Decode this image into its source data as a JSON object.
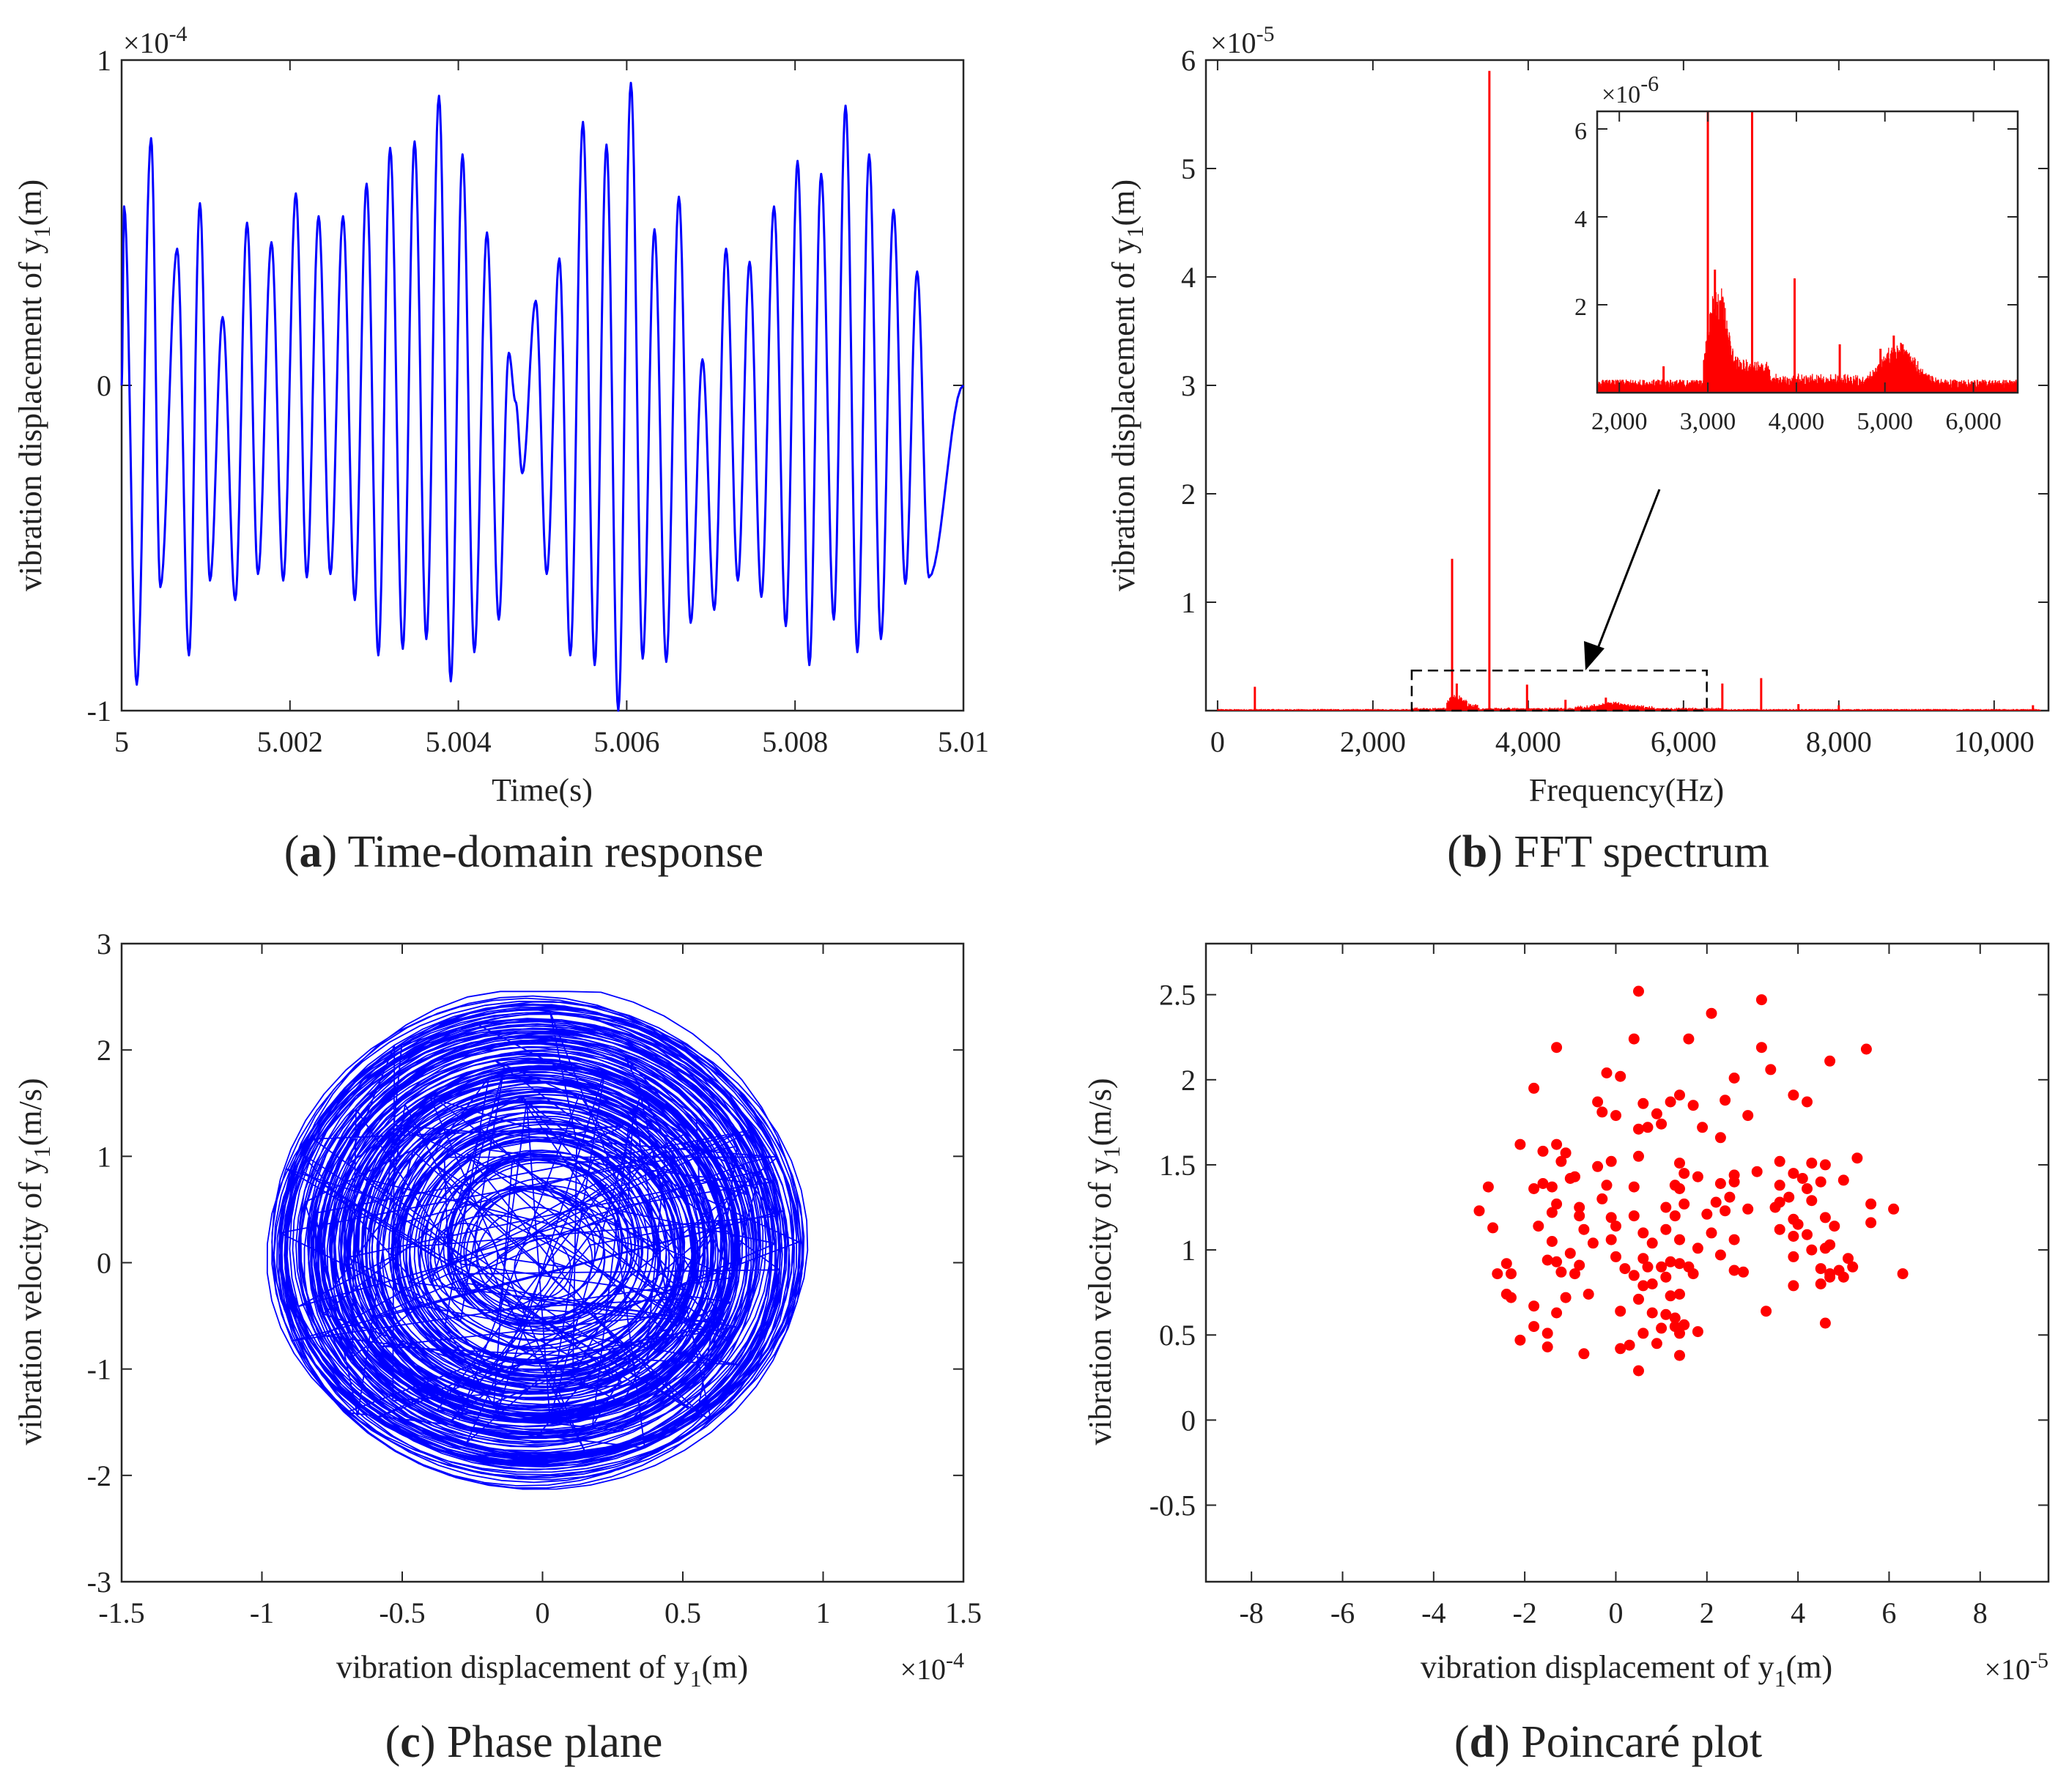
{
  "chart_data": [
    {
      "id": "a",
      "type": "line",
      "caption_letter": "a",
      "caption_text": "Time-domain response",
      "title": "",
      "xlabel": "Time(s)",
      "ylabel": "vibration displacement of y",
      "ylabel_sub": "1",
      "ylabel_unit": "(m)",
      "exponent": "×10",
      "exponent_power": "-4",
      "xlim": [
        5.0,
        5.01
      ],
      "ylim": [
        -1,
        1
      ],
      "xticks": [
        5.0,
        5.002,
        5.004,
        5.006,
        5.008,
        5.01
      ],
      "xtick_labels": [
        "5",
        "5.002",
        "5.004",
        "5.006",
        "5.008",
        "5.01"
      ],
      "yticks": [
        -1,
        0,
        1
      ],
      "ytick_labels": [
        "-1",
        "0",
        "1"
      ],
      "color": "#0000ff",
      "peaks": [
        {
          "t": 5.00003,
          "y": 0.55
        },
        {
          "t": 5.00018,
          "y": -0.92
        },
        {
          "t": 5.00035,
          "y": 0.76
        },
        {
          "t": 5.00046,
          "y": -0.62
        },
        {
          "t": 5.00066,
          "y": 0.42
        },
        {
          "t": 5.0008,
          "y": -0.83
        },
        {
          "t": 5.00093,
          "y": 0.56
        },
        {
          "t": 5.00105,
          "y": -0.6
        },
        {
          "t": 5.0012,
          "y": 0.21
        },
        {
          "t": 5.00135,
          "y": -0.66
        },
        {
          "t": 5.00149,
          "y": 0.5
        },
        {
          "t": 5.00162,
          "y": -0.58
        },
        {
          "t": 5.00178,
          "y": 0.44
        },
        {
          "t": 5.00192,
          "y": -0.6
        },
        {
          "t": 5.00207,
          "y": 0.59
        },
        {
          "t": 5.0022,
          "y": -0.59
        },
        {
          "t": 5.00234,
          "y": 0.52
        },
        {
          "t": 5.00248,
          "y": -0.58
        },
        {
          "t": 5.00263,
          "y": 0.52
        },
        {
          "t": 5.00277,
          "y": -0.66
        },
        {
          "t": 5.00291,
          "y": 0.62
        },
        {
          "t": 5.00305,
          "y": -0.83
        },
        {
          "t": 5.00319,
          "y": 0.73
        },
        {
          "t": 5.00334,
          "y": -0.81
        },
        {
          "t": 5.00348,
          "y": 0.75
        },
        {
          "t": 5.00362,
          "y": -0.78
        },
        {
          "t": 5.00377,
          "y": 0.89
        },
        {
          "t": 5.00391,
          "y": -0.91
        },
        {
          "t": 5.00405,
          "y": 0.71
        },
        {
          "t": 5.00419,
          "y": -0.82
        },
        {
          "t": 5.00434,
          "y": 0.47
        },
        {
          "t": 5.00448,
          "y": -0.72
        },
        {
          "t": 5.0046,
          "y": 0.1
        },
        {
          "t": 5.00468,
          "y": -0.05
        },
        {
          "t": 5.00476,
          "y": -0.27
        },
        {
          "t": 5.00492,
          "y": 0.26
        },
        {
          "t": 5.00505,
          "y": -0.58
        },
        {
          "t": 5.0052,
          "y": 0.39
        },
        {
          "t": 5.00533,
          "y": -0.83
        },
        {
          "t": 5.00548,
          "y": 0.81
        },
        {
          "t": 5.00562,
          "y": -0.86
        },
        {
          "t": 5.00576,
          "y": 0.74
        },
        {
          "t": 5.0059,
          "y": -1.0
        },
        {
          "t": 5.00605,
          "y": 0.93
        },
        {
          "t": 5.00619,
          "y": -0.84
        },
        {
          "t": 5.00633,
          "y": 0.48
        },
        {
          "t": 5.00647,
          "y": -0.85
        },
        {
          "t": 5.00662,
          "y": 0.58
        },
        {
          "t": 5.00676,
          "y": -0.73
        },
        {
          "t": 5.0069,
          "y": 0.08
        },
        {
          "t": 5.00704,
          "y": -0.69
        },
        {
          "t": 5.00718,
          "y": 0.42
        },
        {
          "t": 5.00732,
          "y": -0.6
        },
        {
          "t": 5.00746,
          "y": 0.38
        },
        {
          "t": 5.0076,
          "y": -0.65
        },
        {
          "t": 5.00775,
          "y": 0.55
        },
        {
          "t": 5.00789,
          "y": -0.74
        },
        {
          "t": 5.00803,
          "y": 0.69
        },
        {
          "t": 5.00817,
          "y": -0.86
        },
        {
          "t": 5.00831,
          "y": 0.65
        },
        {
          "t": 5.00846,
          "y": -0.72
        },
        {
          "t": 5.0086,
          "y": 0.86
        },
        {
          "t": 5.00874,
          "y": -0.82
        },
        {
          "t": 5.00888,
          "y": 0.71
        },
        {
          "t": 5.00902,
          "y": -0.78
        },
        {
          "t": 5.00917,
          "y": 0.54
        },
        {
          "t": 5.00931,
          "y": -0.61
        },
        {
          "t": 5.00945,
          "y": 0.35
        },
        {
          "t": 5.00959,
          "y": -0.59
        },
        {
          "t": 5.01,
          "y": 0.0
        }
      ]
    },
    {
      "id": "b",
      "type": "bar",
      "caption_letter": "b",
      "caption_text": "FFT spectrum",
      "title": "",
      "xlabel": "Frequency(Hz)",
      "ylabel": "vibration displacement of y",
      "ylabel_sub": "1",
      "ylabel_unit": "(m)",
      "exponent": "×10",
      "exponent_power": "-5",
      "xlim": [
        -150,
        10700
      ],
      "ylim": [
        0,
        6
      ],
      "xticks": [
        0,
        2000,
        4000,
        6000,
        8000,
        10000
      ],
      "xtick_labels": [
        "0",
        "2,000",
        "4,000",
        "6,000",
        "8,000",
        "10,000"
      ],
      "yticks": [
        1,
        2,
        3,
        4,
        5,
        6
      ],
      "ytick_labels": [
        "1",
        "2",
        "3",
        "4",
        "5",
        "6"
      ],
      "color": "#ff0000",
      "peaks": [
        {
          "f": 480,
          "a": 0.22
        },
        {
          "f": 3020,
          "a": 1.4
        },
        {
          "f": 3080,
          "a": 0.25
        },
        {
          "f": 3500,
          "a": 5.9
        },
        {
          "f": 3985,
          "a": 0.24
        },
        {
          "f": 4480,
          "a": 0.1
        },
        {
          "f": 5000,
          "a": 0.12
        },
        {
          "f": 6500,
          "a": 0.25
        },
        {
          "f": 7000,
          "a": 0.3
        },
        {
          "f": 7480,
          "a": 0.06
        },
        {
          "f": 8000,
          "a": 0.05
        },
        {
          "f": 10500,
          "a": 0.05
        }
      ],
      "zoom_box": {
        "f_range": [
          2500,
          6300
        ],
        "a_range": [
          0,
          0.37
        ]
      },
      "inset": {
        "exponent": "×10",
        "exponent_power": "-6",
        "xlim": [
          1750,
          6500
        ],
        "ylim": [
          0,
          6.4
        ],
        "xticks": [
          2000,
          3000,
          4000,
          5000,
          6000
        ],
        "xtick_labels": [
          "2,000",
          "3,000",
          "4,000",
          "5,000",
          "6,000"
        ],
        "yticks": [
          2,
          4,
          6
        ],
        "ytick_labels": [
          "2",
          "4",
          "6"
        ],
        "peaks": [
          {
            "f": 2500,
            "a": 0.6
          },
          {
            "f": 3000,
            "a": 6.4
          },
          {
            "f": 3080,
            "a": 2.8
          },
          {
            "f": 3140,
            "a": 2.1
          },
          {
            "f": 3500,
            "a": 6.4
          },
          {
            "f": 3980,
            "a": 2.6
          },
          {
            "f": 4490,
            "a": 1.1
          },
          {
            "f": 4950,
            "a": 1.0
          },
          {
            "f": 5100,
            "a": 1.3
          },
          {
            "f": 5200,
            "a": 1.1
          }
        ]
      }
    },
    {
      "id": "c",
      "type": "line",
      "caption_letter": "c",
      "caption_text": "Phase plane",
      "title": "",
      "xlabel": "vibration displacement of y",
      "xlabel_sub": "1",
      "xlabel_unit": "(m)",
      "ylabel": "vibration velocity of y",
      "ylabel_sub": "1",
      "ylabel_unit": "(m/s)",
      "exponent": "×10",
      "exponent_power": "-4",
      "xlim": [
        -1.5,
        1.5
      ],
      "ylim": [
        -3,
        3
      ],
      "xticks": [
        -1.5,
        -1,
        -0.5,
        0,
        0.5,
        1,
        1.5
      ],
      "xtick_labels": [
        "-1.5",
        "-1",
        "-0.5",
        "0",
        "0.5",
        "1",
        "1.5"
      ],
      "yticks": [
        -3,
        -2,
        -1,
        0,
        1,
        2,
        3
      ],
      "ytick_labels": [
        "-3",
        "-2",
        "-1",
        "0",
        "1",
        "2",
        "3"
      ],
      "color": "#0000ff",
      "x_extent": [
        -1.0,
        0.97
      ],
      "y_extent": [
        -2.25,
        2.55
      ]
    },
    {
      "id": "d",
      "type": "scatter",
      "caption_letter": "d",
      "caption_text": "Poincaré plot",
      "title": "",
      "xlabel": "vibration displacement of y",
      "xlabel_sub": "1",
      "xlabel_unit": "(m)",
      "ylabel": "vibration velocity of y",
      "ylabel_sub": "1",
      "ylabel_unit": "(m/s)",
      "exponent": "×10",
      "exponent_power": "-5",
      "xlim": [
        -9,
        9.5
      ],
      "ylim": [
        -0.95,
        2.8
      ],
      "xticks": [
        -8,
        -6,
        -4,
        -2,
        0,
        2,
        4,
        6,
        8
      ],
      "xtick_labels": [
        "-8",
        "-6",
        "-4",
        "-2",
        "0",
        "2",
        "4",
        "6",
        "8"
      ],
      "yticks": [
        -0.5,
        0,
        0.5,
        1,
        1.5,
        2,
        2.5
      ],
      "ytick_labels": [
        "-0.5",
        "0",
        "0.5",
        "1",
        "1.5",
        "2",
        "2.5"
      ],
      "color": "#ff0000",
      "points": [
        [
          0.5,
          2.52
        ],
        [
          3.2,
          2.47
        ],
        [
          2.1,
          2.39
        ],
        [
          1.6,
          2.24
        ],
        [
          0.4,
          2.24
        ],
        [
          -1.3,
          2.19
        ],
        [
          5.5,
          2.18
        ],
        [
          3.2,
          2.19
        ],
        [
          4.7,
          2.11
        ],
        [
          2.6,
          2.01
        ],
        [
          3.4,
          2.06
        ],
        [
          -0.2,
          2.04
        ],
        [
          0.1,
          2.02
        ],
        [
          1.4,
          1.91
        ],
        [
          1.2,
          1.87
        ],
        [
          2.4,
          1.88
        ],
        [
          3.9,
          1.91
        ],
        [
          4.2,
          1.87
        ],
        [
          -1.8,
          1.95
        ],
        [
          -0.4,
          1.87
        ],
        [
          0.6,
          1.86
        ],
        [
          1.7,
          1.85
        ],
        [
          -0.3,
          1.81
        ],
        [
          0.0,
          1.79
        ],
        [
          0.9,
          1.8
        ],
        [
          1.0,
          1.74
        ],
        [
          2.9,
          1.79
        ],
        [
          0.7,
          1.72
        ],
        [
          1.9,
          1.72
        ],
        [
          0.5,
          1.71
        ],
        [
          2.3,
          1.66
        ],
        [
          -1.3,
          1.62
        ],
        [
          -1.6,
          1.58
        ],
        [
          -1.1,
          1.57
        ],
        [
          -2.1,
          1.62
        ],
        [
          -1.2,
          1.52
        ],
        [
          0.5,
          1.55
        ],
        [
          1.4,
          1.51
        ],
        [
          5.3,
          1.54
        ],
        [
          3.6,
          1.52
        ],
        [
          4.3,
          1.51
        ],
        [
          4.6,
          1.5
        ],
        [
          -0.1,
          1.52
        ],
        [
          -0.4,
          1.49
        ],
        [
          1.5,
          1.45
        ],
        [
          1.8,
          1.43
        ],
        [
          -0.9,
          1.43
        ],
        [
          -1.0,
          1.42
        ],
        [
          2.6,
          1.44
        ],
        [
          3.1,
          1.46
        ],
        [
          3.9,
          1.45
        ],
        [
          4.1,
          1.42
        ],
        [
          4.5,
          1.4
        ],
        [
          5.0,
          1.41
        ],
        [
          -1.6,
          1.39
        ],
        [
          -1.4,
          1.37
        ],
        [
          -1.8,
          1.36
        ],
        [
          -2.8,
          1.37
        ],
        [
          -0.2,
          1.38
        ],
        [
          0.4,
          1.37
        ],
        [
          1.3,
          1.38
        ],
        [
          2.3,
          1.39
        ],
        [
          2.6,
          1.4
        ],
        [
          1.4,
          1.36
        ],
        [
          3.6,
          1.38
        ],
        [
          4.2,
          1.36
        ],
        [
          3.8,
          1.31
        ],
        [
          3.6,
          1.28
        ],
        [
          3.5,
          1.25
        ],
        [
          4.3,
          1.29
        ],
        [
          2.5,
          1.31
        ],
        [
          2.2,
          1.28
        ],
        [
          1.5,
          1.27
        ],
        [
          1.1,
          1.25
        ],
        [
          -0.3,
          1.3
        ],
        [
          -1.3,
          1.27
        ],
        [
          -0.8,
          1.25
        ],
        [
          5.6,
          1.27
        ],
        [
          6.1,
          1.24
        ],
        [
          -3.0,
          1.23
        ],
        [
          -1.4,
          1.22
        ],
        [
          -0.8,
          1.2
        ],
        [
          -0.1,
          1.19
        ],
        [
          0.4,
          1.2
        ],
        [
          1.3,
          1.2
        ],
        [
          2.0,
          1.21
        ],
        [
          2.4,
          1.23
        ],
        [
          2.9,
          1.24
        ],
        [
          3.9,
          1.18
        ],
        [
          4.0,
          1.15
        ],
        [
          4.6,
          1.19
        ],
        [
          4.8,
          1.14
        ],
        [
          5.6,
          1.16
        ],
        [
          -2.7,
          1.13
        ],
        [
          -1.7,
          1.14
        ],
        [
          -0.7,
          1.12
        ],
        [
          0.0,
          1.14
        ],
        [
          0.6,
          1.1
        ],
        [
          1.1,
          1.12
        ],
        [
          2.1,
          1.1
        ],
        [
          3.6,
          1.12
        ],
        [
          3.9,
          1.08
        ],
        [
          4.2,
          1.09
        ],
        [
          2.6,
          1.06
        ],
        [
          1.4,
          1.06
        ],
        [
          0.8,
          1.04
        ],
        [
          -0.1,
          1.06
        ],
        [
          -0.5,
          1.04
        ],
        [
          -1.4,
          1.05
        ],
        [
          1.8,
          1.01
        ],
        [
          4.3,
          1.0
        ],
        [
          4.6,
          1.01
        ],
        [
          4.7,
          1.03
        ],
        [
          -1.0,
          0.98
        ],
        [
          0.0,
          0.96
        ],
        [
          0.6,
          0.95
        ],
        [
          1.2,
          0.93
        ],
        [
          1.4,
          0.92
        ],
        [
          2.3,
          0.97
        ],
        [
          3.9,
          0.96
        ],
        [
          5.1,
          0.95
        ],
        [
          -2.4,
          0.92
        ],
        [
          -1.5,
          0.94
        ],
        [
          -1.3,
          0.93
        ],
        [
          -0.8,
          0.91
        ],
        [
          0.2,
          0.89
        ],
        [
          0.7,
          0.9
        ],
        [
          1.0,
          0.9
        ],
        [
          1.6,
          0.9
        ],
        [
          2.6,
          0.88
        ],
        [
          4.5,
          0.89
        ],
        [
          4.7,
          0.86
        ],
        [
          4.9,
          0.88
        ],
        [
          5.2,
          0.9
        ],
        [
          6.3,
          0.86
        ],
        [
          -2.6,
          0.86
        ],
        [
          -2.3,
          0.86
        ],
        [
          -1.2,
          0.87
        ],
        [
          -0.9,
          0.86
        ],
        [
          0.4,
          0.85
        ],
        [
          1.1,
          0.84
        ],
        [
          1.7,
          0.86
        ],
        [
          2.8,
          0.87
        ],
        [
          4.7,
          0.84
        ],
        [
          5.0,
          0.84
        ],
        [
          0.8,
          0.8
        ],
        [
          0.6,
          0.79
        ],
        [
          4.5,
          0.8
        ],
        [
          3.9,
          0.79
        ],
        [
          -2.4,
          0.74
        ],
        [
          -2.3,
          0.72
        ],
        [
          -1.1,
          0.72
        ],
        [
          -0.6,
          0.74
        ],
        [
          1.2,
          0.73
        ],
        [
          1.4,
          0.74
        ],
        [
          0.5,
          0.71
        ],
        [
          -1.8,
          0.67
        ],
        [
          -1.3,
          0.63
        ],
        [
          0.1,
          0.64
        ],
        [
          0.8,
          0.63
        ],
        [
          1.1,
          0.62
        ],
        [
          1.3,
          0.6
        ],
        [
          1.5,
          0.56
        ],
        [
          1.3,
          0.55
        ],
        [
          4.6,
          0.57
        ],
        [
          -1.8,
          0.55
        ],
        [
          -1.5,
          0.51
        ],
        [
          -2.1,
          0.47
        ],
        [
          -1.5,
          0.43
        ],
        [
          0.3,
          0.44
        ],
        [
          0.6,
          0.51
        ],
        [
          1.0,
          0.54
        ],
        [
          1.4,
          0.51
        ],
        [
          -0.7,
          0.39
        ],
        [
          1.4,
          0.38
        ],
        [
          0.1,
          0.42
        ],
        [
          0.5,
          0.29
        ],
        [
          1.8,
          0.52
        ],
        [
          3.3,
          0.64
        ],
        [
          0.9,
          0.45
        ]
      ]
    }
  ]
}
